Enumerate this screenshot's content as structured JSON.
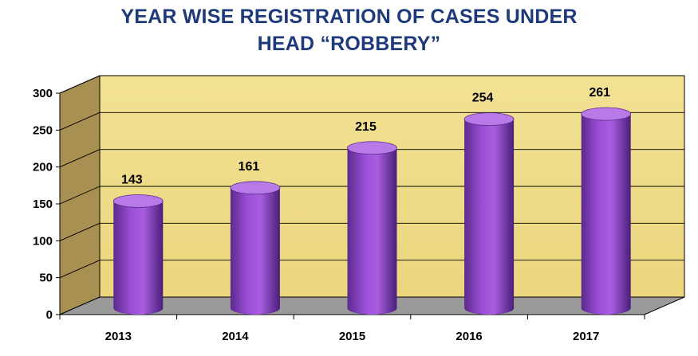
{
  "chart_data": {
    "type": "bar",
    "title_lines": [
      "YEAR WISE REGISTRATION OF CASES UNDER",
      "HEAD “ROBBERY”"
    ],
    "categories": [
      "2013",
      "2014",
      "2015",
      "2016",
      "2017"
    ],
    "values": [
      143,
      161,
      215,
      254,
      261
    ],
    "data_labels": [
      "143",
      "161",
      "215",
      "254",
      "261"
    ],
    "ylim": [
      0,
      300
    ],
    "yticks": [
      0,
      50,
      100,
      150,
      200,
      250,
      300
    ],
    "xlabel": "",
    "ylabel": "",
    "grid": true,
    "legend": "none",
    "colors": {
      "bar": "#9b4fd6",
      "bar_dark": "#4a1f7a",
      "bar_top": "#b77ae6",
      "back_wall": "#f0de8c",
      "side_wall": "#a88f52",
      "floor": "#9a9a9a",
      "title": "#1f3a7a"
    }
  }
}
